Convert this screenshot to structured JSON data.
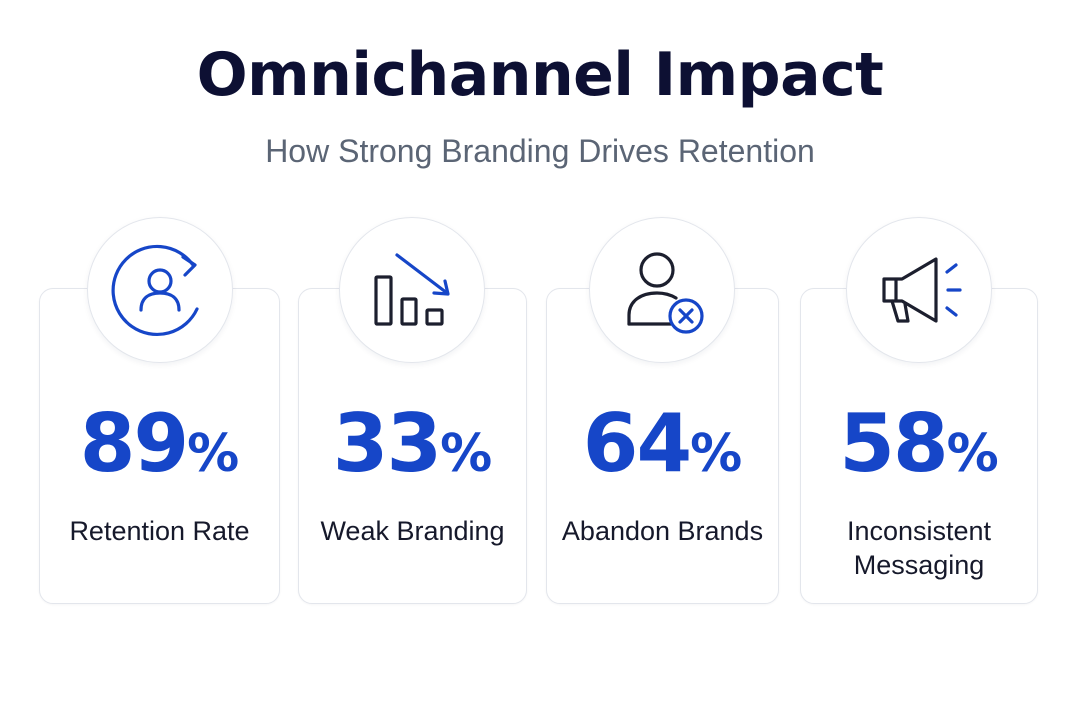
{
  "header": {
    "title": "Omnichannel Impact",
    "subtitle": "How Strong Branding Drives Retention"
  },
  "accent_color": "#1646c8",
  "text_color": "#0d1033",
  "cards": [
    {
      "icon": "user-refresh-icon",
      "value": "89",
      "unit": "%",
      "label": "Retention Rate"
    },
    {
      "icon": "declining-bar-chart-icon",
      "value": "33",
      "unit": "%",
      "label": "Weak Branding"
    },
    {
      "icon": "user-remove-icon",
      "value": "64",
      "unit": "%",
      "label": "Abandon Brands"
    },
    {
      "icon": "megaphone-icon",
      "value": "58",
      "unit": "%",
      "label": "Inconsistent\nMessaging"
    }
  ]
}
